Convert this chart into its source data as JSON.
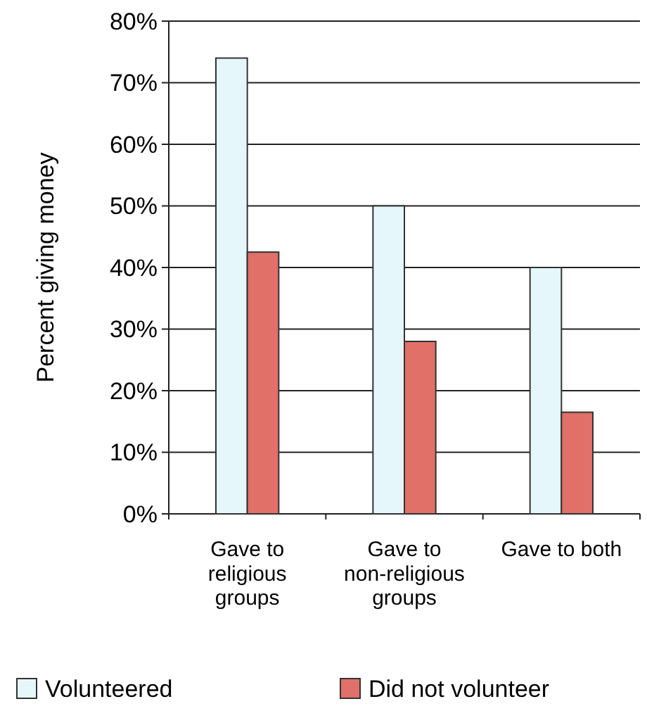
{
  "chart_data": {
    "type": "bar",
    "ylabel": "Percent giving money",
    "categories": [
      "Gave to religious groups",
      "Gave to non-religious groups",
      "Gave to both"
    ],
    "series": [
      {
        "name": "Volunteered",
        "color": "#e6f7fb",
        "values": [
          74,
          50,
          40
        ]
      },
      {
        "name": "Did not volunteer",
        "color": "#e07068",
        "values": [
          42.5,
          28,
          16.5
        ]
      }
    ],
    "ylim": [
      0,
      80
    ],
    "yticks": [
      {
        "value": 0,
        "label": "0%"
      },
      {
        "value": 10,
        "label": "10%"
      },
      {
        "value": 20,
        "label": "20%"
      },
      {
        "value": 30,
        "label": "30%"
      },
      {
        "value": 40,
        "label": "40%"
      },
      {
        "value": 50,
        "label": "50%"
      },
      {
        "value": 60,
        "label": "60%"
      },
      {
        "value": 70,
        "label": "70%"
      },
      {
        "value": 80,
        "label": "80%"
      }
    ],
    "grid": "y",
    "legend": "bottom"
  }
}
